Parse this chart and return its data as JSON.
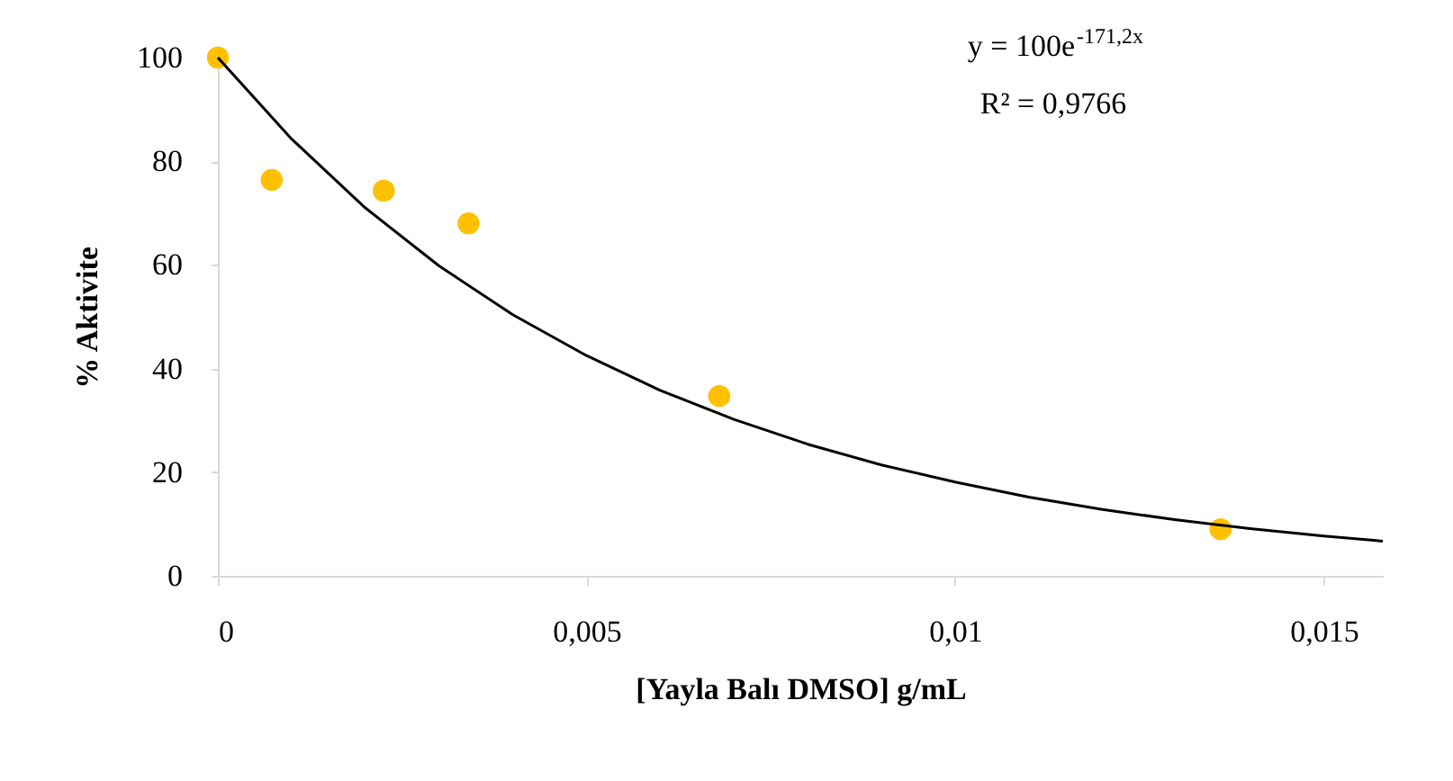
{
  "chart_data": {
    "type": "scatter",
    "xlabel": "[Yayla  Balı DMSO]  g/mL",
    "ylabel": "% Aktivite",
    "x": [
      0,
      0.00073,
      0.00225,
      0.0034,
      0.0068,
      0.0136
    ],
    "series": [
      {
        "color": "#ffc000",
        "values": [
          100,
          76.4,
          74.3,
          68,
          34.7,
          9
        ]
      },
      {
        "type": "line",
        "color": "#000000",
        "marker": "none",
        "x": [
          0,
          0.001,
          0.002,
          0.003,
          0.004,
          0.005,
          0.006,
          0.007,
          0.008,
          0.009,
          0.01,
          0.011,
          0.012,
          0.013,
          0.014,
          0.015,
          0.0158
        ],
        "values": [
          100,
          84.3,
          71,
          59.8,
          50.4,
          42.5,
          35.8,
          30.2,
          25.4,
          21.4,
          18.1,
          15.2,
          12.8,
          10.8,
          9.1,
          7.7,
          6.7
        ]
      }
    ],
    "xlim": [
      0,
      0.0158
    ],
    "xticks": [
      0,
      {
        "value": 0.005,
        "label": "0,005"
      },
      {
        "value": 0.01,
        "label": "0,01"
      },
      {
        "value": 0.015,
        "label": "0,015"
      }
    ],
    "ylim": [
      0,
      100
    ],
    "yticks": [
      0,
      20,
      40,
      60,
      80,
      100
    ],
    "grid": false,
    "annotations": [
      "y = 100e$^{-171,2x}$",
      "R² = 0,9766"
    ]
  }
}
